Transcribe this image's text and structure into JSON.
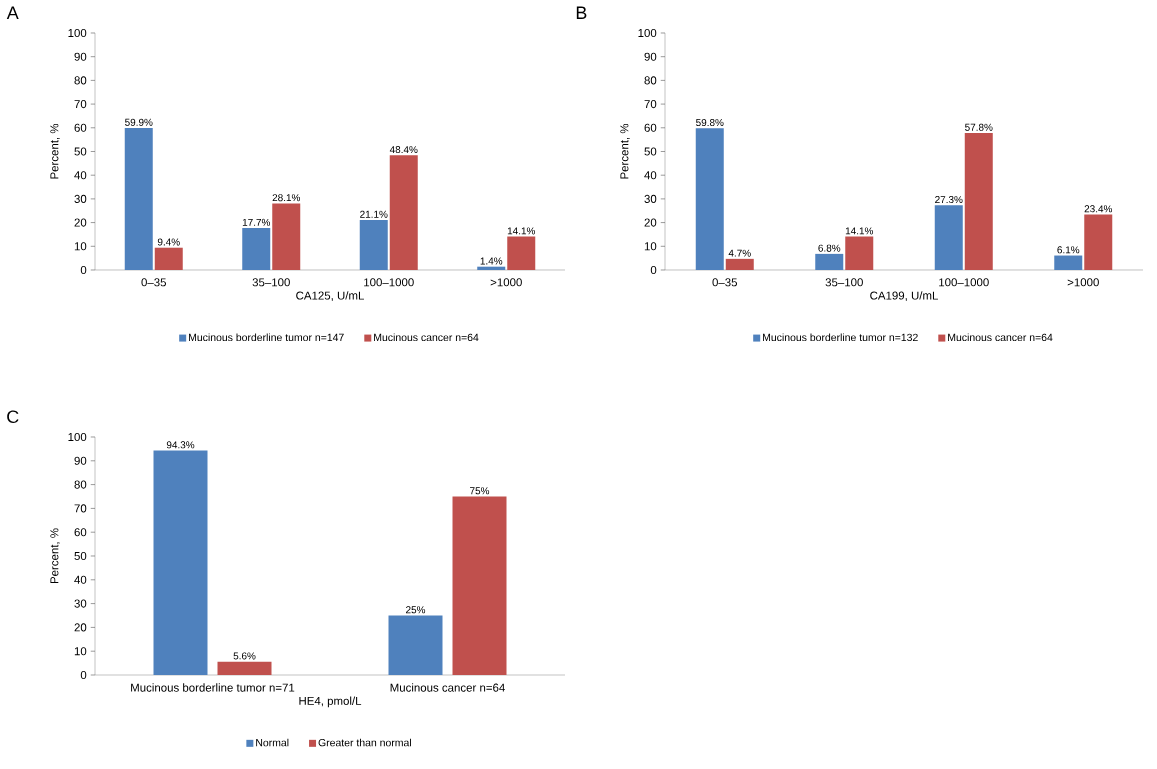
{
  "chart_data": [
    {
      "type": "bar",
      "title": "A",
      "xlabel": "CA125, U/mL",
      "ylabel": "Percent, %",
      "categories": [
        "0–35",
        "35–100",
        "100–1000",
        ">1000"
      ],
      "ylim": [
        0,
        100
      ],
      "yticks": [
        0,
        10,
        20,
        30,
        40,
        50,
        60,
        70,
        80,
        90,
        100
      ],
      "grid": false,
      "legend": "bottom",
      "series": [
        {
          "name": "Mucinous borderline tumor n=147",
          "color": "#4f81bd",
          "values": [
            59.9,
            17.7,
            21.1,
            1.4
          ],
          "value_labels": [
            "59.9%",
            "17.7%",
            "21.1%",
            "1.4%"
          ]
        },
        {
          "name": "Mucinous cancer n=64",
          "color": "#c0504d",
          "values": [
            9.4,
            28.1,
            48.4,
            14.1
          ],
          "value_labels": [
            "9.4%",
            "28.1%",
            "48.4%",
            "14.1%"
          ]
        }
      ]
    },
    {
      "type": "bar",
      "title": "B",
      "xlabel": "CA199, U/mL",
      "ylabel": "Percent, %",
      "categories": [
        "0–35",
        "35–100",
        "100–1000",
        ">1000"
      ],
      "ylim": [
        0,
        100
      ],
      "yticks": [
        0,
        10,
        20,
        30,
        40,
        50,
        60,
        70,
        80,
        90,
        100
      ],
      "grid": false,
      "legend": "bottom",
      "series": [
        {
          "name": "Mucinous borderline tumor n=132",
          "color": "#4f81bd",
          "values": [
            59.8,
            6.8,
            27.3,
            6.1
          ],
          "value_labels": [
            "59.8%",
            "6.8%",
            "27.3%",
            "6.1%"
          ]
        },
        {
          "name": "Mucinous cancer n=64",
          "color": "#c0504d",
          "values": [
            4.7,
            14.1,
            57.8,
            23.4
          ],
          "value_labels": [
            "4.7%",
            "14.1%",
            "57.8%",
            "23.4%"
          ]
        }
      ]
    },
    {
      "type": "bar",
      "title": "C",
      "xlabel": "HE4, pmol/L",
      "ylabel": "Percent, %",
      "categories": [
        "Mucinous borderline tumor n=71",
        "Mucinous cancer n=64"
      ],
      "ylim": [
        0,
        100
      ],
      "yticks": [
        0,
        10,
        20,
        30,
        40,
        50,
        60,
        70,
        80,
        90,
        100
      ],
      "grid": false,
      "legend": "bottom",
      "series": [
        {
          "name": "Normal",
          "color": "#4f81bd",
          "values": [
            94.3,
            25
          ],
          "value_labels": [
            "94.3%",
            "25%"
          ]
        },
        {
          "name": "Greater than normal",
          "color": "#c0504d",
          "values": [
            5.6,
            75
          ],
          "value_labels": [
            "5.6%",
            "75%"
          ]
        }
      ]
    }
  ]
}
